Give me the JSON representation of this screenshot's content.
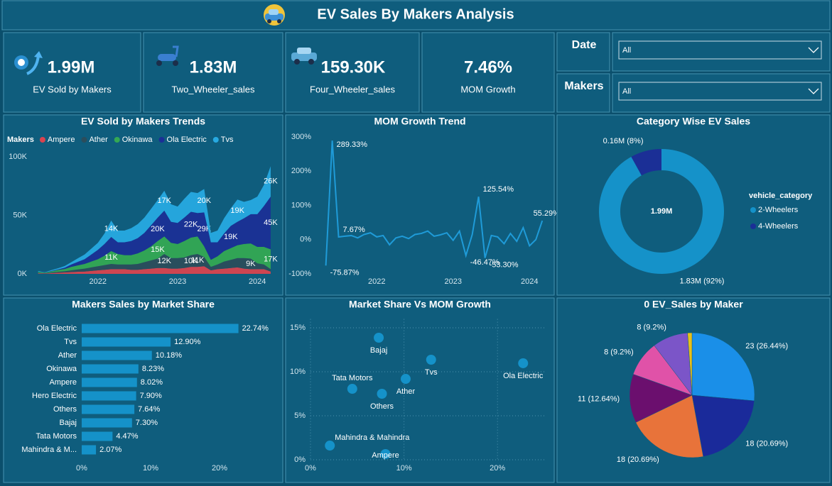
{
  "header": {
    "title": "EV Sales By Makers Analysis"
  },
  "kpis": [
    {
      "value": "1.99M",
      "label": "EV Sold by Makers"
    },
    {
      "value": "1.83M",
      "label": "Two_Wheeler_sales"
    },
    {
      "value": "159.30K",
      "label": "Four_Wheeler_sales"
    },
    {
      "value": "7.46%",
      "label": "MOM Growth"
    }
  ],
  "filters": [
    {
      "label": "Date",
      "selected": "All"
    },
    {
      "label": "Makers",
      "selected": "All"
    }
  ],
  "chart_data": [
    {
      "type": "area",
      "stacked": true,
      "title": "EV Sold by Makers Trends",
      "legend_title": "Makers",
      "x": [
        2021.25,
        2021.333,
        2021.417,
        2021.5,
        2021.583,
        2021.667,
        2021.75,
        2021.833,
        2021.917,
        2022,
        2022.083,
        2022.167,
        2022.25,
        2022.333,
        2022.417,
        2022.5,
        2022.583,
        2022.667,
        2022.75,
        2022.833,
        2022.917,
        2023,
        2023.083,
        2023.167,
        2023.25,
        2023.333,
        2023.417,
        2023.5,
        2023.583,
        2023.667,
        2023.75,
        2023.833,
        2023.917,
        2024,
        2024.083,
        2024.167
      ],
      "xlim": [
        2021.2,
        2024.23
      ],
      "xticks": [
        2022,
        2023,
        2024
      ],
      "ylim": [
        0,
        100
      ],
      "yticks": [
        {
          "value": 0,
          "label": "0K"
        },
        {
          "value": 50,
          "label": "50K"
        },
        {
          "value": 100,
          "label": "100K"
        }
      ],
      "series": [
        {
          "name": "Ampere",
          "color": "#d9434f",
          "values": [
            0.5,
            0.3,
            0.6,
            1,
            1.2,
            1.5,
            1.8,
            2,
            2.5,
            3,
            3.5,
            4,
            4,
            4,
            3.5,
            3.5,
            4,
            4.5,
            5,
            5,
            4.5,
            4.5,
            5,
            6,
            6,
            6.5,
            3,
            4,
            4.5,
            5,
            5.5,
            4.5,
            4,
            4,
            4,
            2
          ]
        },
        {
          "name": "Ather",
          "color": "#2b4d5c",
          "values": [
            0.3,
            0.2,
            0.5,
            0.8,
            1,
            1.5,
            2,
            2.5,
            3,
            3.5,
            4,
            4.5,
            4,
            4,
            4.5,
            5,
            6,
            7,
            8,
            12,
            9,
            9,
            9,
            10,
            11,
            8,
            3,
            4,
            6,
            7,
            8,
            9,
            9,
            5,
            4,
            2
          ],
          "value_labels": [
            null,
            null,
            null,
            null,
            null,
            null,
            null,
            null,
            null,
            null,
            null,
            null,
            null,
            null,
            null,
            null,
            null,
            null,
            null,
            "12K",
            null,
            null,
            null,
            "10K",
            "11K",
            null,
            null,
            null,
            null,
            null,
            null,
            null,
            "9K",
            null,
            null,
            null
          ]
        },
        {
          "name": "Okinawa",
          "color": "#34a853",
          "values": [
            1,
            0.5,
            1,
            1.5,
            2,
            3,
            3.5,
            4,
            5,
            6,
            8,
            11,
            9,
            8,
            8,
            9,
            10,
            12,
            15,
            15,
            13,
            12,
            14,
            15,
            15,
            9,
            6,
            7,
            9,
            10,
            11,
            12,
            13,
            14,
            15,
            17
          ],
          "value_labels": [
            null,
            null,
            null,
            null,
            null,
            null,
            null,
            null,
            null,
            null,
            null,
            "11K",
            null,
            null,
            null,
            null,
            null,
            null,
            "15K",
            null,
            null,
            null,
            null,
            null,
            null,
            null,
            null,
            null,
            null,
            null,
            null,
            null,
            null,
            null,
            null,
            "17K"
          ]
        },
        {
          "name": "Ola Electric",
          "color": "#1b2f96",
          "values": [
            0.2,
            0.1,
            0.3,
            0.5,
            1,
            2,
            3,
            4,
            6,
            8,
            10,
            12,
            10,
            11,
            12,
            13,
            15,
            18,
            20,
            22,
            18,
            18,
            20,
            22,
            20,
            29,
            15,
            12,
            15,
            19,
            20,
            22,
            25,
            28,
            35,
            45
          ],
          "value_labels": [
            null,
            null,
            null,
            null,
            null,
            null,
            null,
            null,
            null,
            null,
            null,
            null,
            null,
            null,
            null,
            null,
            null,
            null,
            "20K",
            null,
            null,
            null,
            null,
            "22K",
            null,
            "29K",
            null,
            null,
            null,
            "19K",
            null,
            null,
            null,
            null,
            null,
            "45K"
          ]
        },
        {
          "name": "Tvs",
          "color": "#27a9e1",
          "values": [
            0.5,
            0.3,
            0.8,
            1,
            1.5,
            2,
            3,
            4,
            5,
            6,
            9,
            14,
            10,
            10,
            11,
            12,
            13,
            14,
            15,
            17,
            15,
            14,
            16,
            17,
            17,
            20,
            8,
            10,
            13,
            15,
            19,
            14,
            12,
            15,
            18,
            26
          ],
          "value_labels": [
            null,
            null,
            null,
            null,
            null,
            null,
            null,
            null,
            null,
            null,
            null,
            "14K",
            null,
            null,
            null,
            null,
            null,
            null,
            null,
            "17K",
            null,
            null,
            null,
            null,
            null,
            "20K",
            null,
            null,
            null,
            null,
            "19K",
            null,
            null,
            null,
            null,
            "26K"
          ]
        }
      ]
    },
    {
      "type": "line",
      "title": "MOM Growth Trend",
      "color": "#1f9bd8",
      "x": [
        2021.333,
        2021.417,
        2021.5,
        2021.583,
        2021.667,
        2021.75,
        2021.833,
        2021.917,
        2022,
        2022.083,
        2022.167,
        2022.25,
        2022.333,
        2022.417,
        2022.5,
        2022.583,
        2022.667,
        2022.75,
        2022.833,
        2022.917,
        2023,
        2023.083,
        2023.167,
        2023.25,
        2023.333,
        2023.417,
        2023.5,
        2023.583,
        2023.667,
        2023.75,
        2023.833,
        2023.917,
        2024,
        2024.083,
        2024.167
      ],
      "values": [
        -75.87,
        289.33,
        7.67,
        10,
        12,
        5,
        15,
        20,
        8,
        12,
        -15,
        5,
        10,
        3,
        15,
        18,
        25,
        10,
        14,
        20,
        -2,
        25,
        -46.47,
        15,
        125.54,
        -53.3,
        12,
        8,
        -12,
        18,
        -5,
        35,
        -18,
        0,
        55.29
      ],
      "value_labels": [
        "-75.87%",
        "289.33%",
        "7.67%",
        null,
        null,
        null,
        null,
        null,
        null,
        null,
        null,
        null,
        null,
        null,
        null,
        null,
        null,
        null,
        null,
        null,
        null,
        null,
        "-46.47%",
        null,
        "125.54%",
        "-53.30%",
        null,
        null,
        null,
        null,
        null,
        null,
        null,
        null,
        "55.29%"
      ],
      "xlim": [
        2021.16,
        2024.23
      ],
      "xticks": [
        2022,
        2023,
        2024
      ],
      "ylim": [
        -100,
        300
      ],
      "yticks": [
        {
          "value": -100,
          "label": "-100%"
        },
        {
          "value": 0,
          "label": "0%"
        },
        {
          "value": 100,
          "label": "100%"
        },
        {
          "value": 200,
          "label": "200%"
        },
        {
          "value": 300,
          "label": "300%"
        }
      ]
    },
    {
      "type": "donut",
      "title": "Category Wise EV Sales",
      "legend_title": "vehicle_category",
      "categories": [
        "2-Wheelers",
        "4-Wheelers"
      ],
      "values": [
        1.83,
        0.16
      ],
      "value_labels": [
        "1.83M (92%)",
        "0.16M (8%)"
      ],
      "colors": [
        "#1592c9",
        "#1b2f96"
      ],
      "center_label": "1.99M"
    },
    {
      "type": "bar",
      "orientation": "horizontal",
      "title": "Makers Sales by Market Share",
      "color": "#1592c9",
      "categories": [
        "Ola Electric",
        "Tvs",
        "Ather",
        "Okinawa",
        "Ampere",
        "Hero Electric",
        "Others",
        "Bajaj",
        "Tata Motors",
        "Mahindra & M..."
      ],
      "values": [
        22.74,
        12.9,
        10.18,
        8.23,
        8.02,
        7.9,
        7.64,
        7.3,
        4.47,
        2.07
      ],
      "value_labels": [
        "22.74%",
        "12.90%",
        "10.18%",
        "8.23%",
        "8.02%",
        "7.90%",
        "7.64%",
        "7.30%",
        "4.47%",
        "2.07%"
      ],
      "xlim": [
        0,
        25
      ],
      "xticks": [
        {
          "value": 0,
          "label": "0%"
        },
        {
          "value": 10,
          "label": "10%"
        },
        {
          "value": 20,
          "label": "20%"
        }
      ]
    },
    {
      "type": "scatter",
      "title": "Market Share Vs MOM Growth",
      "color": "#1592c9",
      "grid": true,
      "categories": [
        "Bajaj",
        "Tvs",
        "Ola Electric",
        "Ather",
        "Tata Motors",
        "Others",
        "Mahindra & Mahindra",
        "Ampere"
      ],
      "x": [
        7.3,
        12.9,
        22.74,
        10.18,
        4.47,
        7.64,
        2.07,
        8.02
      ],
      "y": [
        13.87,
        11.37,
        10.97,
        9.19,
        8.06,
        7.5,
        1.61,
        0.65
      ],
      "xlim": [
        0,
        25
      ],
      "xticks": [
        {
          "value": 0,
          "label": "0%"
        },
        {
          "value": 10,
          "label": "10%"
        },
        {
          "value": 20,
          "label": "20%"
        }
      ],
      "ylim": [
        0,
        16
      ],
      "yticks": [
        {
          "value": 0,
          "label": "0%"
        },
        {
          "value": 5,
          "label": "5%"
        },
        {
          "value": 10,
          "label": "10%"
        },
        {
          "value": 15,
          "label": "15%"
        }
      ]
    },
    {
      "type": "pie",
      "title": "0 EV_Sales by Maker",
      "values": [
        23,
        18,
        18,
        11,
        8,
        8,
        1
      ],
      "value_labels": [
        "23 (26.44%)",
        "18 (20.69%)",
        "18 (20.69%)",
        "11 (12.64%)",
        "8 (9.2%)",
        "8 (9.2%)",
        null
      ],
      "colors": [
        "#1a8fe8",
        "#1a2a9a",
        "#e8733a",
        "#6b0f6e",
        "#e052a8",
        "#7b55c8",
        "#e8c01a"
      ]
    }
  ]
}
